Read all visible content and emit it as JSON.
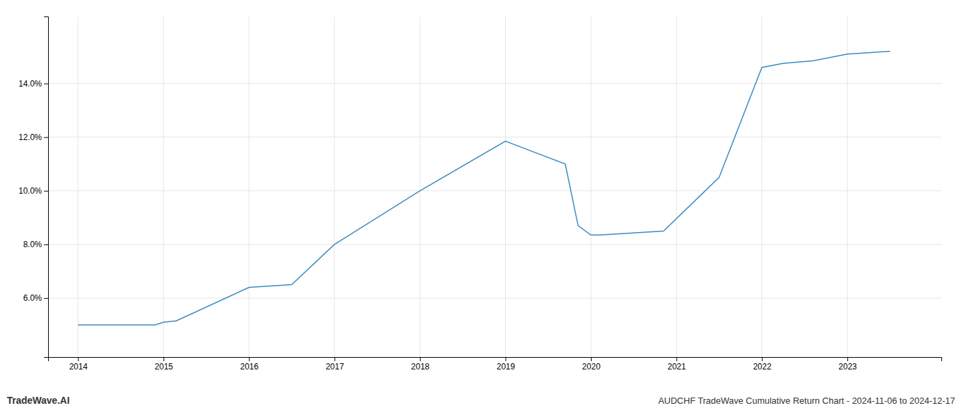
{
  "chart_data": {
    "type": "line",
    "title": "AUDCHF TradeWave Cumulative Return Chart - 2024-11-06 to 2024-12-17",
    "annotations": [
      "TradeWave.AI"
    ],
    "x": [
      2014.0,
      2014.9,
      2015.0,
      2015.15,
      2016.0,
      2016.5,
      2017.0,
      2018.0,
      2019.0,
      2019.7,
      2019.85,
      2020.0,
      2020.1,
      2020.85,
      2021.5,
      2022.0,
      2022.25,
      2022.6,
      2023.0,
      2023.5
    ],
    "values": [
      5.0,
      5.0,
      5.1,
      5.15,
      6.4,
      6.5,
      8.0,
      10.0,
      11.85,
      11.0,
      8.7,
      8.35,
      8.35,
      8.5,
      10.5,
      14.6,
      14.75,
      14.85,
      15.1,
      15.2
    ],
    "color": "#3a8abf",
    "xlim": [
      2013.65,
      2024.1
    ],
    "ylim": [
      3.8,
      16.5
    ],
    "xticks": [
      2014,
      2015,
      2016,
      2017,
      2018,
      2019,
      2020,
      2021,
      2022,
      2023
    ],
    "yticks": [
      {
        "value": 6.0,
        "label": "6.0%"
      },
      {
        "value": 8.0,
        "label": "8.0%"
      },
      {
        "value": 10.0,
        "label": "10.0%"
      },
      {
        "value": 12.0,
        "label": "12.0%"
      },
      {
        "value": 14.0,
        "label": "14.0%"
      }
    ],
    "grid": true
  }
}
